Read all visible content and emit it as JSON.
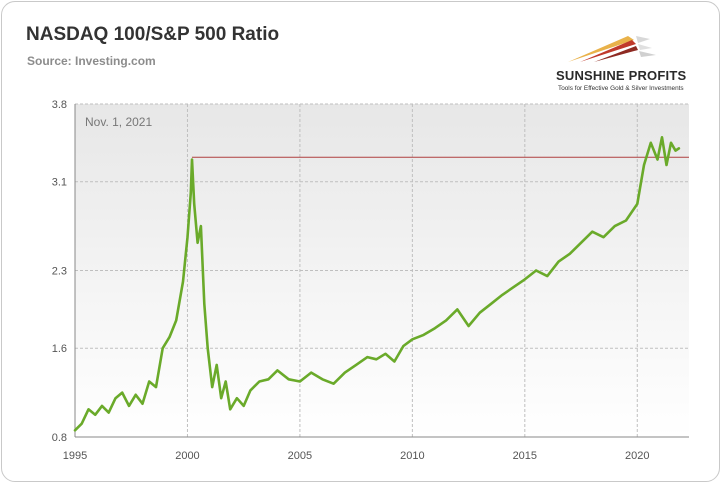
{
  "header": {
    "title": "NASDAQ 100/S&P 500 Ratio",
    "source": "Source: Investing.com"
  },
  "logo": {
    "name": "SUNSHINE PROFITS",
    "tagline": "Tools for Effective Gold & Silver Investments"
  },
  "colors": {
    "series": "#6aaa2a",
    "reference_line": "#b04040",
    "plot_background": "#f0f0f0",
    "grid": "#bfbfbf"
  },
  "chart_data": {
    "type": "line",
    "title": "NASDAQ 100/S&P 500 Ratio",
    "xlabel": "",
    "ylabel": "",
    "xlim": [
      1995.0,
      2022.3
    ],
    "ylim": [
      0.8,
      3.8
    ],
    "x_ticks": [
      "1995",
      "2000",
      "2005",
      "2010",
      "2015",
      "2020"
    ],
    "y_ticks": [
      "0.8",
      "1.6",
      "2.3",
      "3.1",
      "3.8"
    ],
    "grid": true,
    "legend": "none",
    "annotation": "Nov. 1, 2021",
    "reference_line": {
      "y": 3.32,
      "x_start": 2000.2,
      "x_end": 2022.3
    },
    "series": [
      {
        "x": [
          1995.0,
          1995.3,
          1995.6,
          1995.9,
          1996.2,
          1996.5,
          1996.8,
          1997.1,
          1997.4,
          1997.7,
          1998.0,
          1998.3,
          1998.6,
          1998.9,
          1999.2,
          1999.5,
          1999.8,
          2000.0,
          2000.15,
          2000.2,
          2000.3,
          2000.45,
          2000.6,
          2000.75,
          2000.9,
          2001.1,
          2001.3,
          2001.5,
          2001.7,
          2001.9,
          2002.2,
          2002.5,
          2002.8,
          2003.2,
          2003.6,
          2004.0,
          2004.5,
          2005.0,
          2005.5,
          2006.0,
          2006.5,
          2007.0,
          2007.5,
          2008.0,
          2008.4,
          2008.8,
          2009.2,
          2009.6,
          2010.0,
          2010.5,
          2011.0,
          2011.5,
          2012.0,
          2012.5,
          2013.0,
          2013.5,
          2014.0,
          2014.5,
          2015.0,
          2015.5,
          2016.0,
          2016.5,
          2017.0,
          2017.5,
          2018.0,
          2018.5,
          2019.0,
          2019.5,
          2020.0,
          2020.3,
          2020.6,
          2020.9,
          2021.1,
          2021.3,
          2021.5,
          2021.7,
          2021.85
        ],
        "y": [
          0.86,
          0.92,
          1.05,
          1.0,
          1.08,
          1.02,
          1.15,
          1.2,
          1.08,
          1.18,
          1.1,
          1.3,
          1.25,
          1.6,
          1.7,
          1.85,
          2.2,
          2.6,
          3.0,
          3.3,
          2.9,
          2.55,
          2.7,
          2.0,
          1.6,
          1.25,
          1.45,
          1.15,
          1.3,
          1.05,
          1.15,
          1.08,
          1.22,
          1.3,
          1.32,
          1.4,
          1.32,
          1.3,
          1.38,
          1.32,
          1.28,
          1.38,
          1.45,
          1.52,
          1.5,
          1.55,
          1.48,
          1.62,
          1.68,
          1.72,
          1.78,
          1.85,
          1.95,
          1.8,
          1.92,
          2.0,
          2.08,
          2.15,
          2.22,
          2.3,
          2.25,
          2.38,
          2.45,
          2.55,
          2.65,
          2.6,
          2.7,
          2.75,
          2.9,
          3.25,
          3.45,
          3.3,
          3.5,
          3.25,
          3.45,
          3.38,
          3.4
        ]
      }
    ]
  }
}
